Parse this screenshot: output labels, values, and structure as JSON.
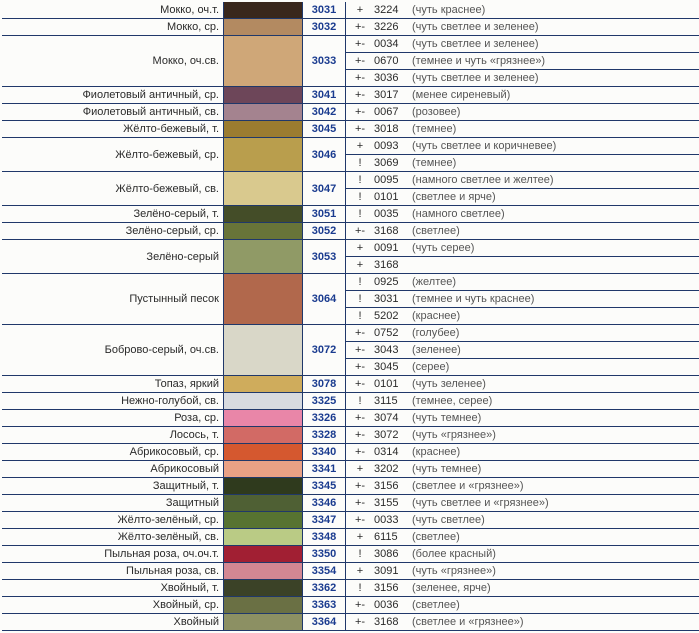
{
  "rows": [
    {
      "name": "Мокко, оч.т.",
      "swatch": "#39271c",
      "code": "3031",
      "alts": [
        {
          "sign": "+",
          "altcode": "3224",
          "note": "(чуть краснее)"
        }
      ]
    },
    {
      "name": "Мокко, ср.",
      "swatch": "#b38a61",
      "code": "3032",
      "alts": [
        {
          "sign": "+-",
          "altcode": "3226",
          "note": "(чуть светлее и зеленее)"
        }
      ]
    },
    {
      "name": "Мокко, оч.св.",
      "swatch": "#cfa778",
      "code": "3033",
      "alts": [
        {
          "sign": "+-",
          "altcode": "0034",
          "note": "(чуть светлее и зеленее)"
        },
        {
          "sign": "+-",
          "altcode": "0670",
          "note": "(темнее и чуть «грязнее»)"
        },
        {
          "sign": "+-",
          "altcode": "3036",
          "note": "(чуть светлее и зеленее)"
        }
      ]
    },
    {
      "name": "Фиолетовый античный, ср.",
      "swatch": "#6d4659",
      "code": "3041",
      "alts": [
        {
          "sign": "+-",
          "altcode": "3017",
          "note": "(менее сиреневый)"
        }
      ]
    },
    {
      "name": "Фиолетовый античный, св.",
      "swatch": "#a4838f",
      "code": "3042",
      "alts": [
        {
          "sign": "+-",
          "altcode": "0067",
          "note": "(розовее)"
        }
      ]
    },
    {
      "name": "Жёлто-бежевый, т.",
      "swatch": "#9b7c30",
      "code": "3045",
      "alts": [
        {
          "sign": "+-",
          "altcode": "3018",
          "note": "(темнее)"
        }
      ]
    },
    {
      "name": "Жёлто-бежевый, ср.",
      "swatch": "#b99e4d",
      "code": "3046",
      "alts": [
        {
          "sign": "+",
          "altcode": "0093",
          "note": "(чуть светлее и коричневее)"
        },
        {
          "sign": "!",
          "altcode": "3069",
          "note": "(темнее)"
        }
      ]
    },
    {
      "name": "Жёлто-бежевый, св.",
      "swatch": "#d9c98e",
      "code": "3047",
      "alts": [
        {
          "sign": "!",
          "altcode": "0095",
          "note": "(намного светлее и желтее)"
        },
        {
          "sign": "!",
          "altcode": "0101",
          "note": "(светлее и ярче)"
        }
      ]
    },
    {
      "name": "Зелёно-серый, т.",
      "swatch": "#444d28",
      "code": "3051",
      "alts": [
        {
          "sign": "!",
          "altcode": "0035",
          "note": "(намного светлее)"
        }
      ]
    },
    {
      "name": "Зелёно-серый, ср.",
      "swatch": "#687439",
      "code": "3052",
      "alts": [
        {
          "sign": "+-",
          "altcode": "3168",
          "note": "(светлее)"
        }
      ]
    },
    {
      "name": "Зелёно-серый",
      "swatch": "#909a66",
      "code": "3053",
      "alts": [
        {
          "sign": "+",
          "altcode": "0091",
          "note": "(чуть серее)"
        },
        {
          "sign": "+",
          "altcode": "3168",
          "note": ""
        }
      ]
    },
    {
      "name": "Пустынный песок",
      "swatch": "#b1684c",
      "code": "3064",
      "alts": [
        {
          "sign": "!",
          "altcode": "0925",
          "note": "(желтее)"
        },
        {
          "sign": "!",
          "altcode": "3031",
          "note": "(темнее и чуть краснее)"
        },
        {
          "sign": "!",
          "altcode": "5202",
          "note": "(краснее)"
        }
      ]
    },
    {
      "name": "Боброво-серый, оч.св.",
      "swatch": "#d9d7c8",
      "code": "3072",
      "alts": [
        {
          "sign": "+-",
          "altcode": "0752",
          "note": "(голубее)"
        },
        {
          "sign": "+-",
          "altcode": "3043",
          "note": "(зеленее)"
        },
        {
          "sign": "+-",
          "altcode": "3045",
          "note": "(серее)"
        }
      ]
    },
    {
      "name": "Топаз, яркий",
      "swatch": "#cfac5c",
      "code": "3078",
      "alts": [
        {
          "sign": "+-",
          "altcode": "0101",
          "note": "(чуть зеленее)"
        }
      ]
    },
    {
      "name": "Нежно-голубой, св.",
      "swatch": "#d7dadf",
      "code": "3325",
      "alts": [
        {
          "sign": "!",
          "altcode": "3115",
          "note": "(темнее, серее)"
        }
      ]
    },
    {
      "name": "Роза, ср.",
      "swatch": "#e986a8",
      "code": "3326",
      "alts": [
        {
          "sign": "+-",
          "altcode": "3074",
          "note": "(чуть темнее)"
        }
      ]
    },
    {
      "name": "Лосось, т.",
      "swatch": "#d26a65",
      "code": "3328",
      "alts": [
        {
          "sign": "+-",
          "altcode": "3072",
          "note": "(чуть «грязнее»)"
        }
      ]
    },
    {
      "name": "Абрикосовый, ср.",
      "swatch": "#d5582f",
      "code": "3340",
      "alts": [
        {
          "sign": "+-",
          "altcode": "0314",
          "note": "(краснее)"
        }
      ]
    },
    {
      "name": "Абрикосовый",
      "swatch": "#e9a185",
      "code": "3341",
      "alts": [
        {
          "sign": "+",
          "altcode": "3202",
          "note": "(чуть темнее)"
        }
      ]
    },
    {
      "name": "Защитный, т.",
      "swatch": "#2f3a1d",
      "code": "3345",
      "alts": [
        {
          "sign": "+-",
          "altcode": "3156",
          "note": "(светлее и «грязнее»)"
        }
      ]
    },
    {
      "name": "Защитный",
      "swatch": "#4f6034",
      "code": "3346",
      "alts": [
        {
          "sign": "+-",
          "altcode": "3155",
          "note": "(чуть светлее и «грязнее»)"
        }
      ]
    },
    {
      "name": "Жёлто-зелёный, ср.",
      "swatch": "#577331",
      "code": "3347",
      "alts": [
        {
          "sign": "+-",
          "altcode": "0033",
          "note": "(чуть светлее)"
        }
      ]
    },
    {
      "name": "Жёлто-зелёный, св.",
      "swatch": "#bacb85",
      "code": "3348",
      "alts": [
        {
          "sign": "+",
          "altcode": "6115",
          "note": "(светлее)"
        }
      ]
    },
    {
      "name": "Пыльная роза, оч.оч.т.",
      "swatch": "#a11f33",
      "code": "3350",
      "alts": [
        {
          "sign": "!",
          "altcode": "3086",
          "note": "(более красный)"
        }
      ]
    },
    {
      "name": "Пыльная роза, св.",
      "swatch": "#d38793",
      "code": "3354",
      "alts": [
        {
          "sign": "+",
          "altcode": "3091",
          "note": "(чуть «грязнее»)"
        }
      ]
    },
    {
      "name": "Хвойный, т.",
      "swatch": "#3b4227",
      "code": "3362",
      "alts": [
        {
          "sign": "!",
          "altcode": "3156",
          "note": "(зеленее, ярче)"
        }
      ]
    },
    {
      "name": "Хвойный, ср.",
      "swatch": "#6a7044",
      "code": "3363",
      "alts": [
        {
          "sign": "+-",
          "altcode": "0036",
          "note": "(светлее)"
        }
      ]
    },
    {
      "name": "Хвойный",
      "swatch": "#8c9063",
      "code": "3364",
      "alts": [
        {
          "sign": "+-",
          "altcode": "3168",
          "note": "(светлее и «грязнее»)"
        }
      ]
    }
  ]
}
